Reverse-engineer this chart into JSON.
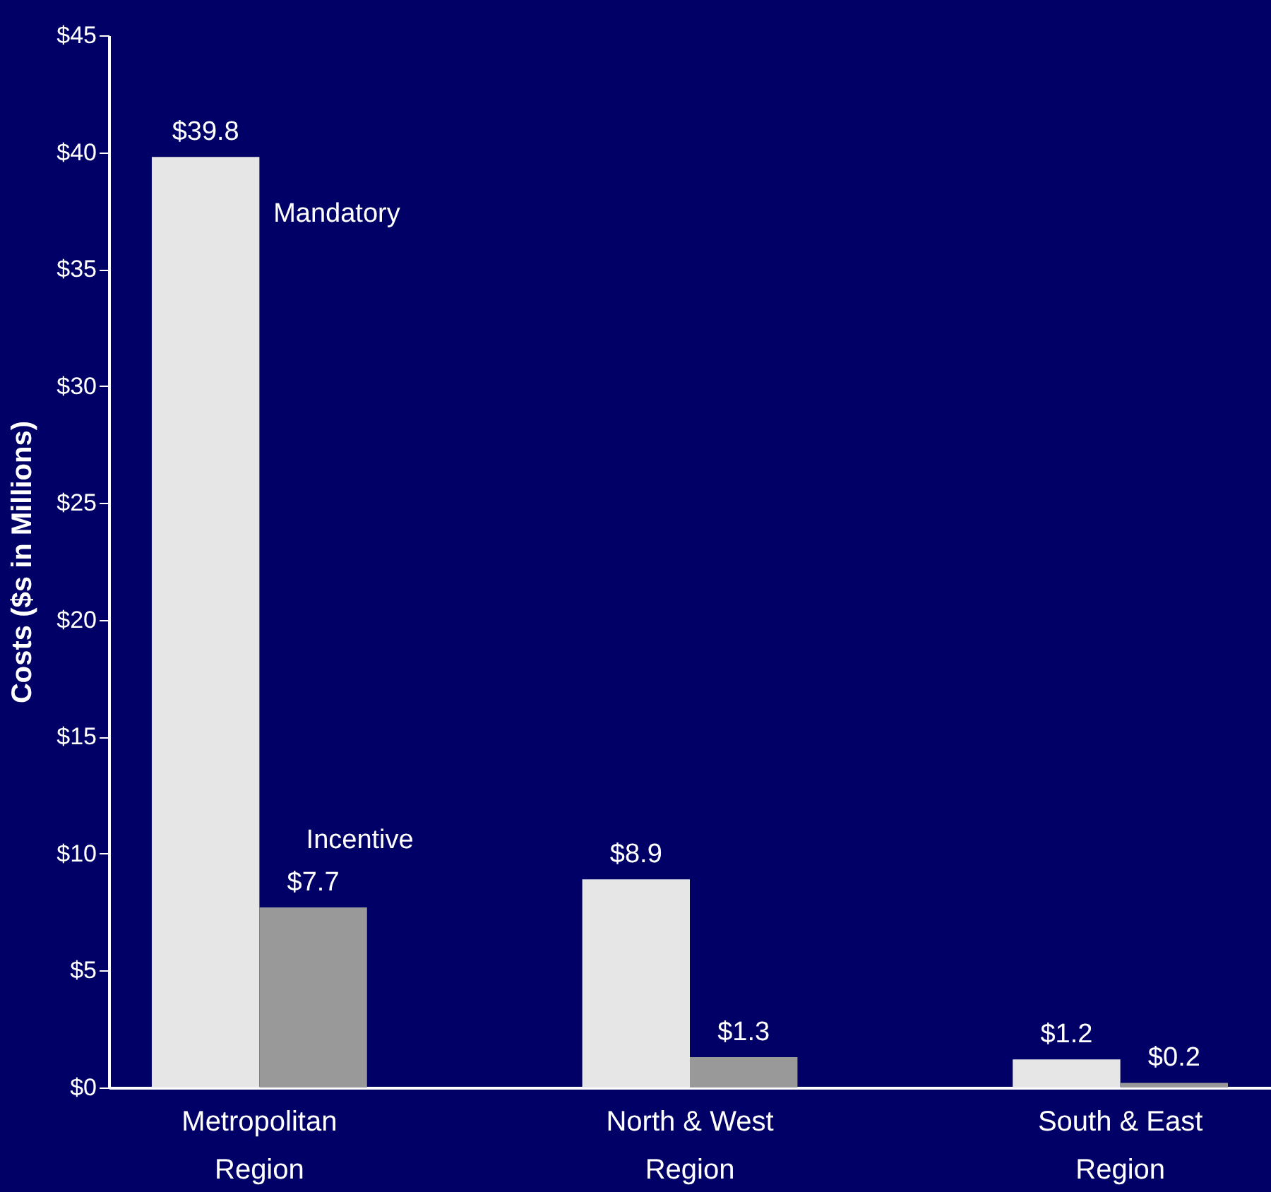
{
  "chart_data": {
    "type": "bar",
    "ylabel": "Costs ($s in Millions)",
    "categories": [
      "Metropolitan Region",
      "North & West Region",
      "South & East Region"
    ],
    "series": [
      {
        "name": "Mandatory",
        "color": "#e6e6e6",
        "values": [
          39.8,
          8.9,
          1.2
        ],
        "value_labels": [
          "$39.8",
          "$8.9",
          "$1.2"
        ]
      },
      {
        "name": "Incentive",
        "color": "#999999",
        "values": [
          7.7,
          1.3,
          0.2
        ],
        "value_labels": [
          "$7.7",
          "$1.3",
          "$0.2"
        ]
      }
    ],
    "ylim": [
      0,
      45
    ],
    "yticks": [
      {
        "value": 0,
        "label": "$0"
      },
      {
        "value": 5,
        "label": "$5"
      },
      {
        "value": 10,
        "label": "$10"
      },
      {
        "value": 15,
        "label": "$15"
      },
      {
        "value": 20,
        "label": "$20"
      },
      {
        "value": 25,
        "label": "$25"
      },
      {
        "value": 30,
        "label": "$30"
      },
      {
        "value": 35,
        "label": "$35"
      },
      {
        "value": 40,
        "label": "$40"
      },
      {
        "value": 45,
        "label": "$45"
      }
    ],
    "grid": false,
    "legend": false
  }
}
